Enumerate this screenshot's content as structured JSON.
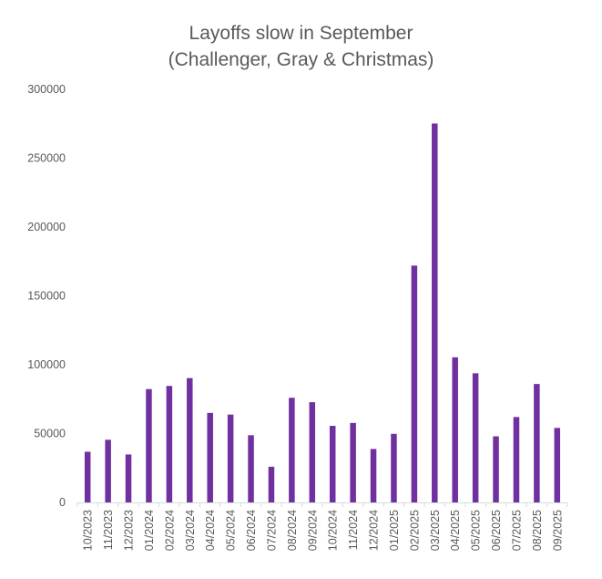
{
  "chart_data": {
    "type": "bar",
    "title": "Layoffs slow in September",
    "subtitle": "(Challenger, Gray & Christmas)",
    "xlabel": "",
    "ylabel": "",
    "ylim": [
      0,
      300000
    ],
    "yticks": [
      "0",
      "50000",
      "100000",
      "150000",
      "200000",
      "250000",
      "300000"
    ],
    "grid": false,
    "legend": "none",
    "bar_color": "#7030A0",
    "categories": [
      "10/2023",
      "11/2023",
      "12/2023",
      "01/2024",
      "02/2024",
      "03/2024",
      "04/2024",
      "05/2024",
      "06/2024",
      "07/2024",
      "08/2024",
      "09/2024",
      "10/2024",
      "11/2024",
      "12/2024",
      "01/2025",
      "02/2025",
      "03/2025",
      "04/2025",
      "05/2025",
      "06/2025",
      "07/2025",
      "08/2025",
      "09/2025"
    ],
    "values": [
      36800,
      45500,
      34800,
      82300,
      84600,
      90300,
      65000,
      63800,
      48800,
      25900,
      76000,
      72800,
      55600,
      57700,
      38800,
      49800,
      172000,
      275200,
      105400,
      93800,
      48000,
      62000,
      86000,
      54100
    ]
  }
}
